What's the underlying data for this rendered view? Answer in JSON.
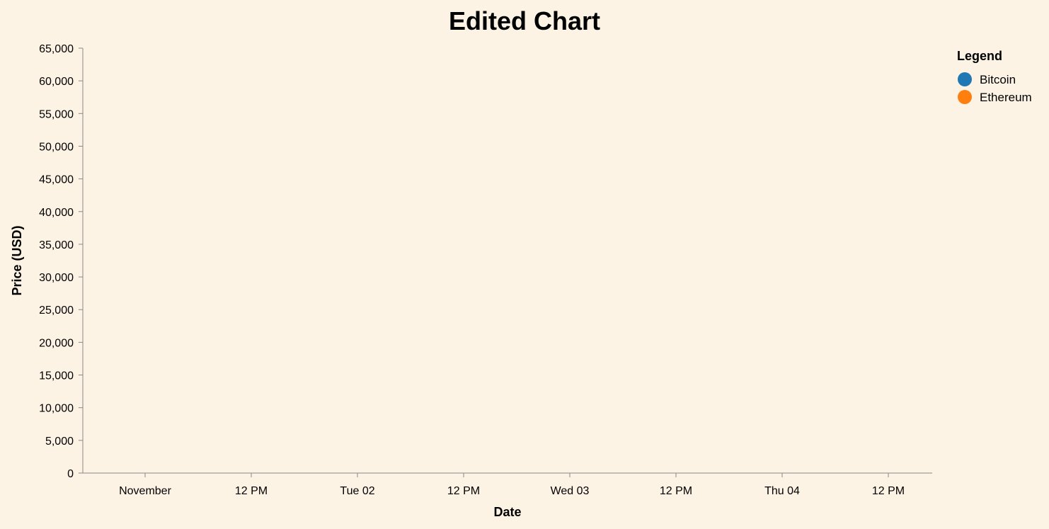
{
  "chart_data": {
    "type": "line",
    "title": "Edited Chart",
    "xlabel": "Date",
    "ylabel": "Price (USD)",
    "x_ticks": [
      "November",
      "12 PM",
      "Tue 02",
      "12 PM",
      "Wed 03",
      "12 PM",
      "Thu 04",
      "12 PM"
    ],
    "y_ticks": [
      "0",
      "5,000",
      "10,000",
      "15,000",
      "20,000",
      "25,000",
      "30,000",
      "35,000",
      "40,000",
      "45,000",
      "50,000",
      "55,000",
      "60,000",
      "65,000"
    ],
    "ylim": [
      0,
      65000
    ],
    "grid": false,
    "legend": {
      "title": "Legend",
      "placement": "top-right",
      "entries": [
        {
          "name": "Bitcoin",
          "color": "#1f77b4"
        },
        {
          "name": "Ethereum",
          "color": "#ff7f0e"
        }
      ]
    },
    "series": [
      {
        "name": "Bitcoin",
        "color": "#1f77b4",
        "values": []
      },
      {
        "name": "Ethereum",
        "color": "#ff7f0e",
        "values": []
      }
    ]
  },
  "colors": {
    "background": "#fdf3e5",
    "axis": "#888888",
    "text": "#000000"
  }
}
